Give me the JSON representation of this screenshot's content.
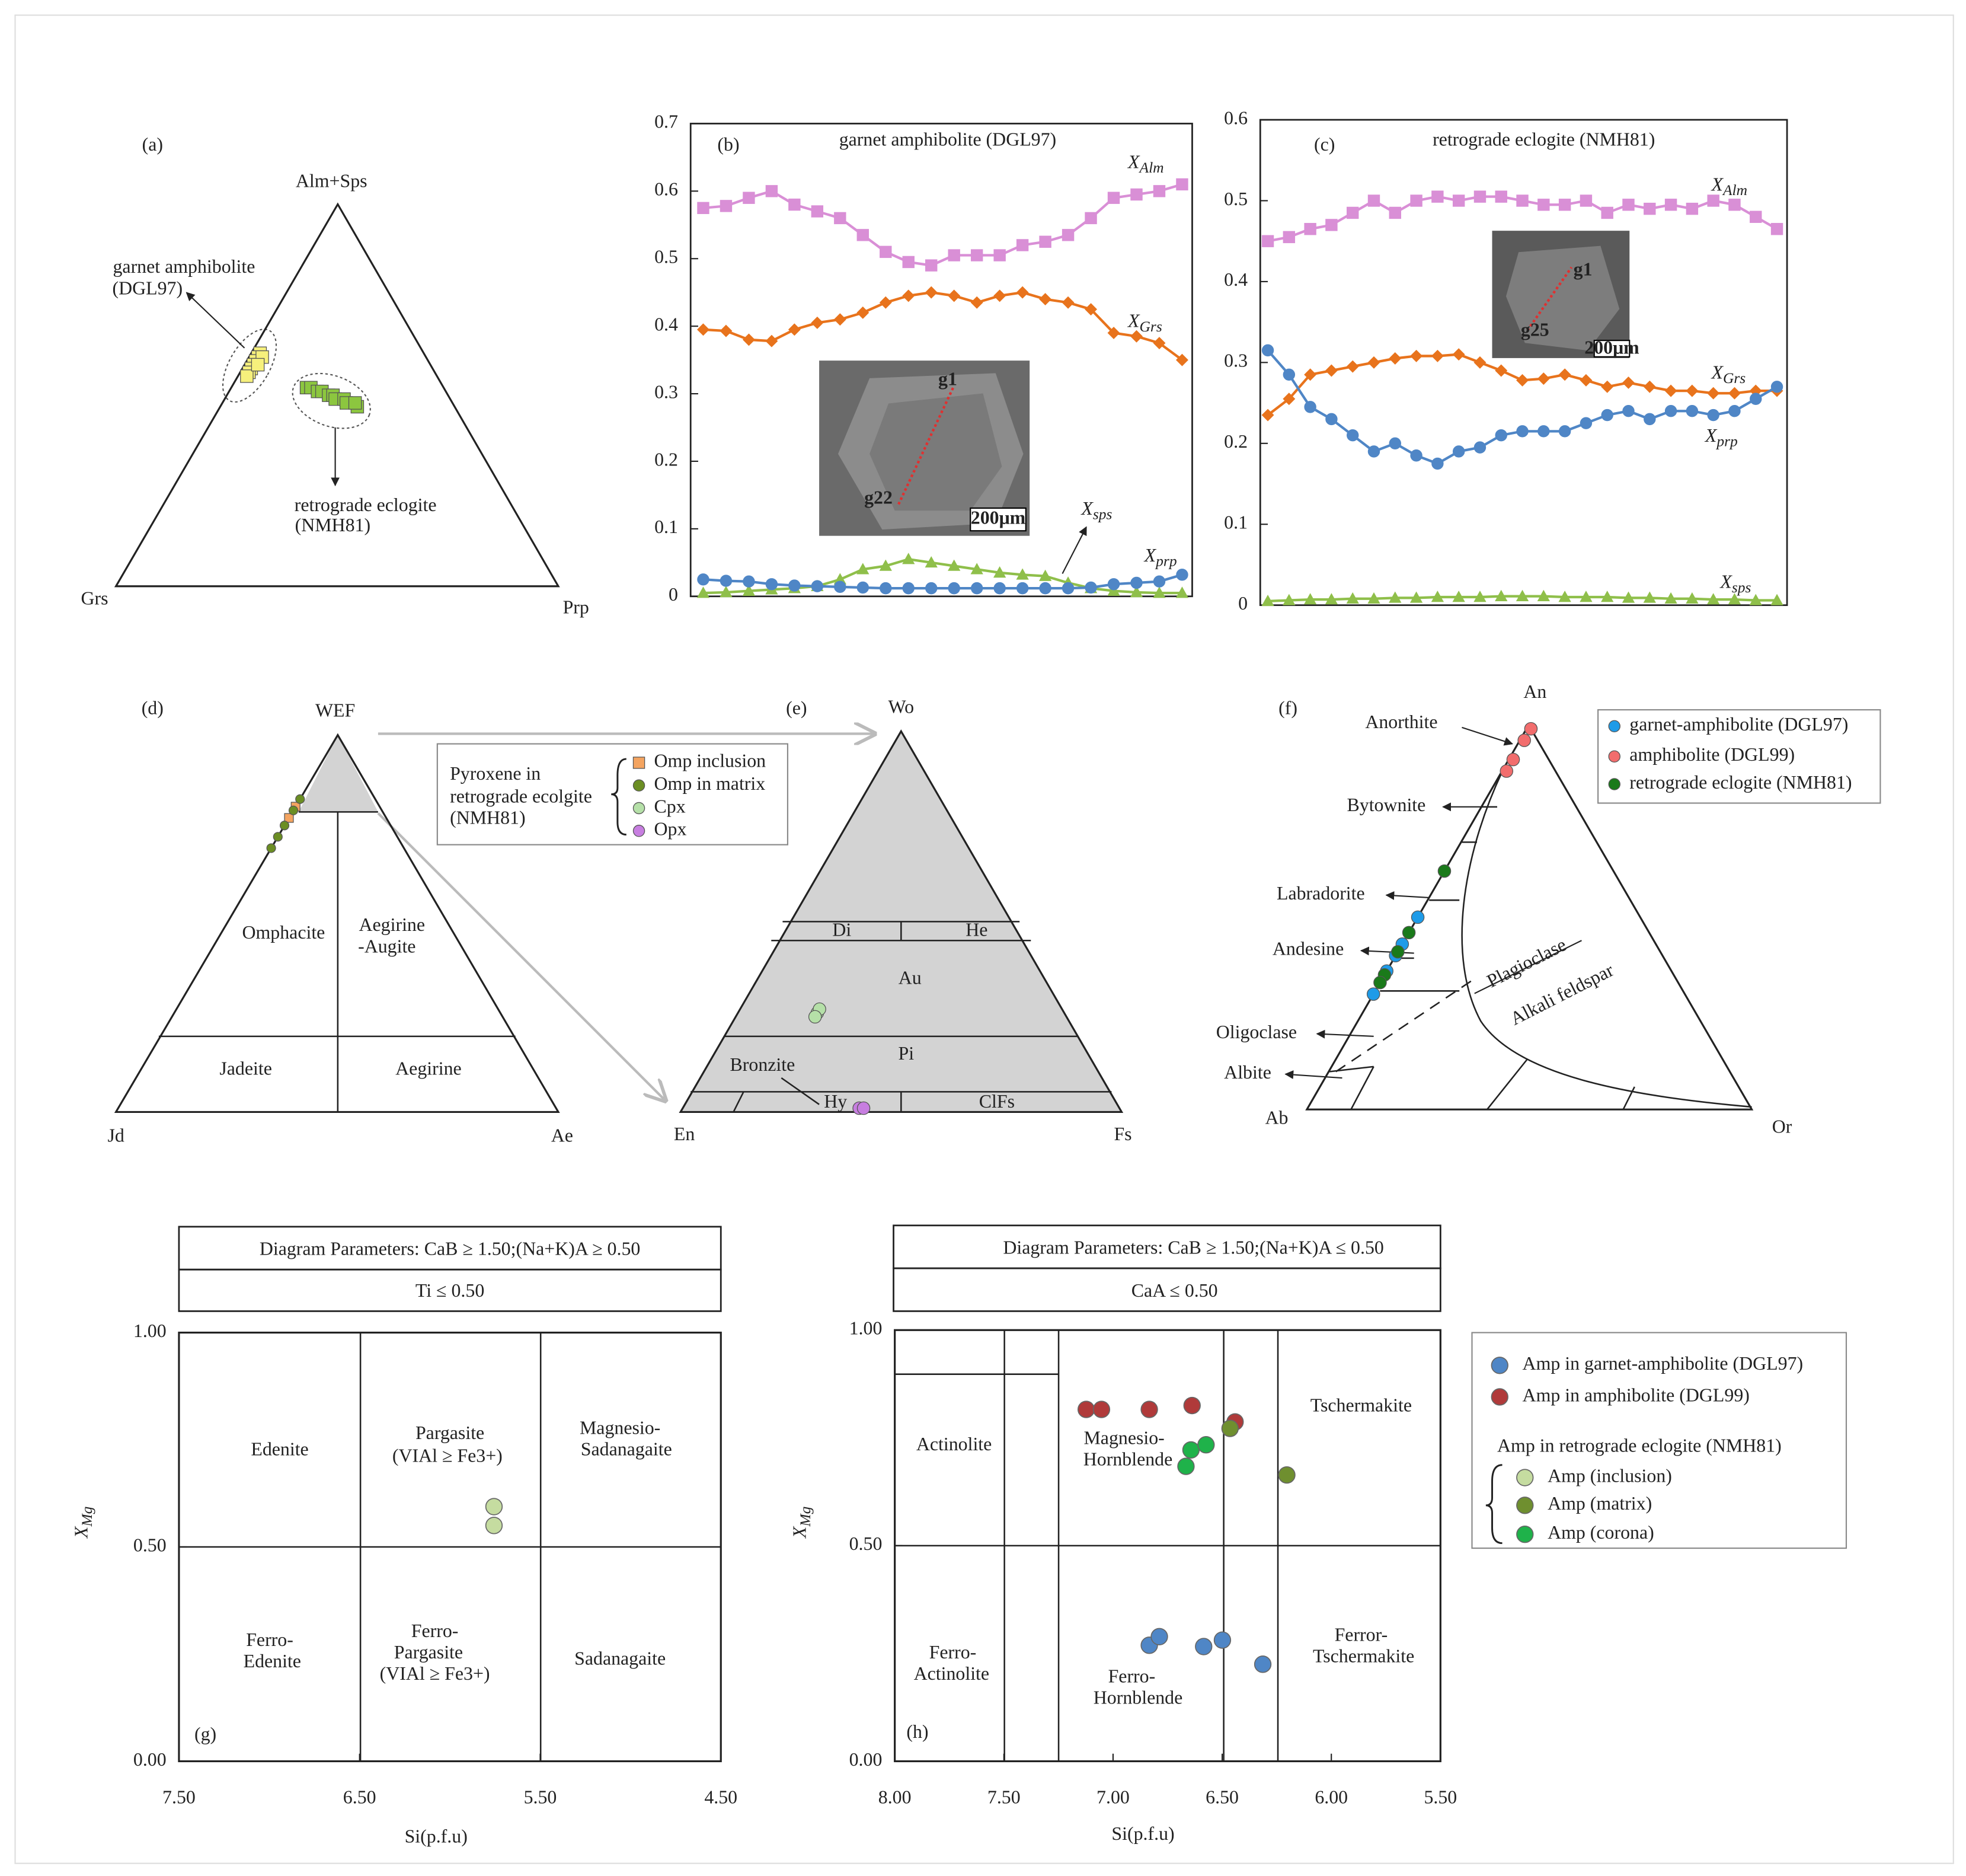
{
  "chart_data": [
    {
      "type": "ternary",
      "panel": "(a)",
      "vertex_labels": [
        "Alm+Sps",
        "Grs",
        "Prp"
      ],
      "annotations": [
        "garnet amphibolite",
        "(DGL97)",
        "retrograde eclogite",
        "(NMH81)"
      ],
      "series": [
        {
          "color": "#f6f07c",
          "marker": "square",
          "values": [
            [
              61,
              37,
              2
            ],
            [
              60,
              38,
              2
            ],
            [
              59,
              39,
              2
            ],
            [
              58,
              40,
              2
            ],
            [
              57,
              41,
              2
            ],
            [
              56,
              42,
              2
            ],
            [
              55,
              43,
              2
            ],
            [
              60,
              37,
              3
            ],
            [
              58,
              39,
              3
            ]
          ]
        },
        {
          "color": "#8cc63f",
          "marker": "square",
          "values": [
            [
              52,
              31,
              17
            ],
            [
              52,
              30,
              18
            ],
            [
              51,
              29,
              20
            ],
            [
              51,
              28,
              21
            ],
            [
              50,
              27,
              23
            ],
            [
              50,
              26,
              24
            ],
            [
              49,
              26,
              25
            ],
            [
              49,
              24,
              27
            ],
            [
              48,
              24,
              28
            ],
            [
              47,
              22,
              31
            ],
            [
              48,
              22,
              30
            ]
          ]
        }
      ]
    },
    {
      "type": "line",
      "panel": "(b)",
      "title": "garnet amphibolite (DGL97)",
      "ylim": [
        0,
        0.7
      ],
      "yticks": [
        0,
        0.1,
        0.2,
        0.3,
        0.4,
        0.5,
        0.6,
        0.7
      ],
      "inset_labels": [
        "g1",
        "g22",
        "200μm"
      ],
      "series": [
        {
          "name": "XAlm",
          "color": "#d98fd6",
          "marker": "square",
          "values": [
            0.575,
            0.578,
            0.59,
            0.6,
            0.58,
            0.57,
            0.56,
            0.535,
            0.51,
            0.495,
            0.49,
            0.505,
            0.505,
            0.505,
            0.52,
            0.525,
            0.535,
            0.56,
            0.59,
            0.595,
            0.6,
            0.61
          ]
        },
        {
          "name": "XGrs",
          "color": "#e8731c",
          "marker": "diamond",
          "values": [
            0.395,
            0.393,
            0.38,
            0.378,
            0.395,
            0.405,
            0.41,
            0.42,
            0.435,
            0.445,
            0.45,
            0.445,
            0.435,
            0.445,
            0.45,
            0.44,
            0.435,
            0.425,
            0.39,
            0.385,
            0.375,
            0.35
          ]
        },
        {
          "name": "Xsps",
          "color": "#8fbf4a",
          "marker": "triangle",
          "values": [
            0.005,
            0.006,
            0.008,
            0.01,
            0.012,
            0.015,
            0.025,
            0.04,
            0.045,
            0.055,
            0.05,
            0.045,
            0.04,
            0.035,
            0.032,
            0.03,
            0.02,
            0.012,
            0.008,
            0.006,
            0.005,
            0.005
          ]
        },
        {
          "name": "Xprp",
          "color": "#4f86c6",
          "marker": "circle",
          "values": [
            0.025,
            0.023,
            0.022,
            0.018,
            0.016,
            0.015,
            0.014,
            0.013,
            0.012,
            0.012,
            0.012,
            0.012,
            0.012,
            0.012,
            0.012,
            0.012,
            0.012,
            0.013,
            0.018,
            0.02,
            0.022,
            0.032
          ]
        }
      ]
    },
    {
      "type": "line",
      "panel": "(c)",
      "title": "retrograde eclogite (NMH81)",
      "ylim": [
        0,
        0.6
      ],
      "yticks": [
        0,
        0.1,
        0.2,
        0.3,
        0.4,
        0.5,
        0.6
      ],
      "inset_labels": [
        "g1",
        "g25",
        "200μm"
      ],
      "series": [
        {
          "name": "XAlm",
          "color": "#d98fd6",
          "marker": "square",
          "values": [
            0.45,
            0.455,
            0.465,
            0.47,
            0.485,
            0.5,
            0.485,
            0.5,
            0.505,
            0.5,
            0.505,
            0.505,
            0.5,
            0.495,
            0.495,
            0.5,
            0.485,
            0.495,
            0.49,
            0.495,
            0.49,
            0.5,
            0.495,
            0.48,
            0.465
          ]
        },
        {
          "name": "XGrs",
          "color": "#e8731c",
          "marker": "diamond",
          "values": [
            0.235,
            0.255,
            0.285,
            0.29,
            0.295,
            0.3,
            0.305,
            0.308,
            0.308,
            0.31,
            0.3,
            0.29,
            0.278,
            0.28,
            0.285,
            0.278,
            0.27,
            0.275,
            0.27,
            0.265,
            0.265,
            0.262,
            0.262,
            0.265,
            0.265
          ]
        },
        {
          "name": "Xprp",
          "color": "#4f86c6",
          "marker": "circle",
          "values": [
            0.315,
            0.285,
            0.245,
            0.23,
            0.21,
            0.19,
            0.2,
            0.185,
            0.175,
            0.19,
            0.195,
            0.21,
            0.215,
            0.215,
            0.215,
            0.225,
            0.235,
            0.24,
            0.23,
            0.24,
            0.24,
            0.235,
            0.24,
            0.255,
            0.27
          ]
        },
        {
          "name": "Xsps",
          "color": "#8fbf4a",
          "marker": "triangle",
          "values": [
            0.005,
            0.006,
            0.007,
            0.007,
            0.008,
            0.008,
            0.009,
            0.009,
            0.01,
            0.01,
            0.01,
            0.011,
            0.011,
            0.011,
            0.01,
            0.01,
            0.01,
            0.009,
            0.009,
            0.008,
            0.008,
            0.007,
            0.007,
            0.006,
            0.006
          ]
        }
      ]
    },
    {
      "type": "ternary",
      "panel": "(d)",
      "vertex_labels": [
        "WEF",
        "Jd",
        "Ae"
      ],
      "fields": [
        "Omphacite",
        "Aegirine",
        "-Augite",
        "Jadeite",
        "Aegirine"
      ],
      "legend_title": [
        "Pyroxene in",
        "retrograde ecolgite",
        "(NMH81)"
      ],
      "series": [
        {
          "name": "Omp inclusion",
          "color": "#f4a460",
          "marker": "square",
          "values": [
            [
              81,
              19,
              0
            ],
            [
              78,
              22,
              0
            ]
          ]
        },
        {
          "name": "Omp in matrix",
          "color": "#6b8e23",
          "marker": "circle",
          "values": [
            [
              83,
              17,
              0
            ],
            [
              80,
              20,
              0
            ],
            [
              76,
              24,
              0
            ],
            [
              73,
              27,
              0
            ],
            [
              70,
              30,
              0
            ]
          ]
        },
        {
          "name": "Cpx",
          "color": "#b5e0a8",
          "marker": "circle",
          "values": []
        },
        {
          "name": "Opx",
          "color": "#c77ee0",
          "marker": "circle",
          "values": []
        }
      ]
    },
    {
      "type": "ternary",
      "panel": "(e)",
      "vertex_labels": [
        "Wo",
        "En",
        "Fs"
      ],
      "fields": [
        "Di",
        "He",
        "Au",
        "Pi",
        "Bronzite",
        "Hy",
        "ClFs"
      ],
      "series": [
        {
          "color": "#b5e0a8",
          "marker": "circle",
          "values": [
            [
              26,
              56,
              18
            ],
            [
              27,
              55,
              18
            ],
            [
              25,
              57,
              18
            ]
          ]
        },
        {
          "color": "#c77ee0",
          "marker": "circle",
          "values": [
            [
              1,
              59,
              40
            ],
            [
              1,
              58,
              41
            ]
          ]
        }
      ]
    },
    {
      "type": "ternary",
      "panel": "(f)",
      "vertex_labels": [
        "An",
        "Ab",
        "Or"
      ],
      "fields": [
        "Anorthite",
        "Bytownite",
        "Labradorite",
        "Andesine",
        "Oligoclase",
        "Albite",
        "Plagioclase",
        "Alkali feldspar"
      ],
      "series": [
        {
          "name": "garnet-amphibolite (DGL97)",
          "color": "#1e9be8",
          "marker": "circle",
          "values": [
            [
              50,
              50,
              0
            ],
            [
              43,
              57,
              0
            ],
            [
              40,
              60,
              0
            ],
            [
              36,
              64,
              0
            ],
            [
              30,
              70,
              0
            ]
          ]
        },
        {
          "name": "amphibolite (DGL99)",
          "color": "#f26d6d",
          "marker": "circle",
          "values": [
            [
              99,
              0,
              1
            ],
            [
              96,
              3,
              1
            ],
            [
              91,
              8,
              1
            ],
            [
              88,
              11,
              1
            ]
          ]
        },
        {
          "name": "retrograde eclogite (NMH81)",
          "color": "#1a7a1a",
          "marker": "circle",
          "values": [
            [
              62,
              38,
              0
            ],
            [
              46,
              54,
              0
            ],
            [
              41,
              59,
              0
            ],
            [
              35,
              65,
              0
            ],
            [
              33,
              67,
              0
            ]
          ]
        }
      ]
    },
    {
      "type": "scatter",
      "panel": "(g)",
      "header": [
        "Diagram Parameters: CaB ≥ 1.50;(Na+K)A ≥ 0.50",
        "Ti ≤ 0.50"
      ],
      "x_label": "Si(p.f.u)",
      "y_label": "XMg",
      "xlim": [
        7.5,
        4.5
      ],
      "xticks": [
        {
          "value": 7.5,
          "label": "7.50"
        },
        {
          "value": 6.5,
          "label": "6.50"
        },
        {
          "value": 5.5,
          "label": "5.50"
        },
        {
          "value": 4.5,
          "label": "4.50"
        }
      ],
      "ylim": [
        0,
        1
      ],
      "yticks": [
        {
          "value": 0,
          "label": "0.00"
        },
        {
          "value": 0.5,
          "label": "0.50"
        },
        {
          "value": 1,
          "label": "1.00"
        }
      ],
      "fields": [
        "Edenite",
        "Pargasite",
        "(VIAl ≥ Fe3+)",
        "Magnesio-",
        "Sadanagaite",
        "Ferro-",
        "Edenite",
        "Ferro-",
        "Pargasite",
        "(VIAl ≥ Fe3+)",
        "Sadanagaite"
      ],
      "series": [
        {
          "color": "#c5dca0",
          "x": [
            5.756,
            5.756
          ],
          "y": [
            0.594,
            0.55
          ]
        }
      ]
    },
    {
      "type": "scatter",
      "panel": "(h)",
      "header": [
        "Diagram Parameters: CaB ≥ 1.50;(Na+K)A ≤ 0.50",
        "CaA ≤ 0.50"
      ],
      "x_label": "Si(p.f.u)",
      "y_label": "XMg",
      "xlim": [
        8,
        5.5
      ],
      "xticks": [
        {
          "value": 8,
          "label": "8.00"
        },
        {
          "value": 7.5,
          "label": "7.50"
        },
        {
          "value": 7,
          "label": "7.00"
        },
        {
          "value": 6.5,
          "label": "6.50"
        },
        {
          "value": 6,
          "label": "6.00"
        },
        {
          "value": 5.5,
          "label": "5.50"
        }
      ],
      "ylim": [
        0,
        1
      ],
      "yticks": [
        {
          "value": 0,
          "label": "0.00"
        },
        {
          "value": 0.5,
          "label": "0.50"
        },
        {
          "value": 1,
          "label": "1.00"
        }
      ],
      "fields": [
        "Actinolite",
        "Magnesio-",
        "Hornblende",
        "Tschermakite",
        "Ferro-",
        "Actinolite",
        "Ferro-",
        "Hornblende",
        "Ferror-",
        "Tschermakite"
      ],
      "legend_title": "Amp in retrograde eclogite (NMH81)",
      "series": [
        {
          "name": "Amp in garnet-amphibolite (DGL97)",
          "color": "#4f86c6",
          "x": [
            6.834,
            6.788,
            6.585,
            6.499,
            6.314
          ],
          "y": [
            0.269,
            0.289,
            0.266,
            0.281,
            0.225
          ]
        },
        {
          "name": "Amp in amphibolite (DGL99)",
          "color": "#b03a3a",
          "x": [
            7.123,
            7.053,
            6.834,
            6.638,
            6.441
          ],
          "y": [
            0.816,
            0.816,
            0.816,
            0.825,
            0.787
          ]
        },
        {
          "name": "Amp (inclusion)",
          "color": "#c5dca0",
          "x": [],
          "y": []
        },
        {
          "name": "Amp (matrix)",
          "color": "#6f8f2f",
          "x": [
            6.464,
            6.204
          ],
          "y": [
            0.772,
            0.664
          ]
        },
        {
          "name": "Amp (corona)",
          "color": "#1fb24a",
          "x": [
            6.643,
            6.574,
            6.666
          ],
          "y": [
            0.722,
            0.734,
            0.684
          ]
        }
      ]
    }
  ]
}
